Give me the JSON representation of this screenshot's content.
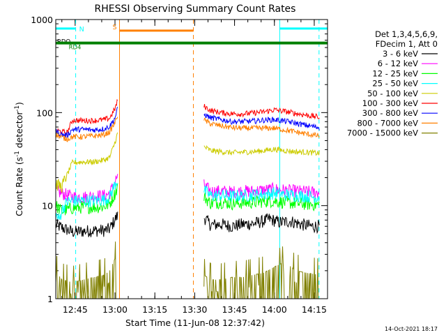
{
  "chart_data": {
    "type": "line",
    "title": "RHESSI Observing Summary Count Rates",
    "xlabel": "Start Time (11-Jun-08 12:37:42)",
    "ylabel_main": "Count Rate (s",
    "ylabel_sup": "-1",
    "ylabel_rest": " detector",
    "ylabel_end": ")",
    "y_scale": "log",
    "ylim": [
      1,
      1000
    ],
    "xlim_minutes": [
      757.7,
      860.0
    ],
    "x_ticks": [
      {
        "minutes": 765,
        "label": "12:45"
      },
      {
        "minutes": 780,
        "label": "13:00"
      },
      {
        "minutes": 795,
        "label": "13:15"
      },
      {
        "minutes": 810,
        "label": "13:30"
      },
      {
        "minutes": 825,
        "label": "13:45"
      },
      {
        "minutes": 840,
        "label": "14:00"
      },
      {
        "minutes": 855,
        "label": "14:15"
      }
    ],
    "y_ticks": [
      {
        "value": 1,
        "label": "1"
      },
      {
        "value": 10,
        "label": "10"
      },
      {
        "value": 100,
        "label": "100"
      },
      {
        "value": 1000,
        "label": "1000"
      }
    ],
    "legend_title": [
      "Det 1,3,4,5,6,9,",
      "FDecim 1, Att 0"
    ],
    "series": [
      {
        "name": "3 - 6 keV",
        "color": "#000000",
        "segments": [
          {
            "points": [
              [
                757.7,
                6.2
              ],
              [
                760,
                5.8
              ],
              [
                764,
                5.2
              ],
              [
                768,
                5.3
              ],
              [
                772,
                5.4
              ],
              [
                776,
                5.4
              ],
              [
                778,
                5.6
              ],
              [
                780.5,
                7.5
              ],
              [
                781,
                7.8
              ]
            ]
          },
          {
            "points": [
              [
                813.5,
                7.5
              ],
              [
                816,
                6.2
              ],
              [
                820,
                6.3
              ],
              [
                824,
                6.0
              ],
              [
                828,
                6.3
              ],
              [
                832,
                6.4
              ],
              [
                836,
                6.8
              ],
              [
                838,
                7.2
              ],
              [
                842,
                6.6
              ],
              [
                846,
                6.8
              ],
              [
                850,
                6.3
              ],
              [
                854,
                6.0
              ],
              [
                857,
                6.0
              ]
            ]
          }
        ]
      },
      {
        "name": "6 - 12 keV",
        "color": "#ff00ff",
        "segments": [
          {
            "points": [
              [
                757.7,
                14.5
              ],
              [
                760,
                13.5
              ],
              [
                764,
                12.5
              ],
              [
                768,
                12.3
              ],
              [
                772,
                12.7
              ],
              [
                776,
                12.8
              ],
              [
                778,
                13.5
              ],
              [
                780,
                18
              ],
              [
                781,
                21
              ]
            ]
          },
          {
            "points": [
              [
                813.5,
                16.5
              ],
              [
                816,
                14.2
              ],
              [
                820,
                14.3
              ],
              [
                824,
                14.0
              ],
              [
                828,
                14.3
              ],
              [
                832,
                14.3
              ],
              [
                836,
                14.7
              ],
              [
                840,
                15.0
              ],
              [
                844,
                14.6
              ],
              [
                848,
                14.3
              ],
              [
                852,
                14.1
              ],
              [
                857,
                13.8
              ]
            ]
          }
        ]
      },
      {
        "name": "12 - 25 keV",
        "color": "#00ff00",
        "segments": [
          {
            "points": [
              [
                757.7,
                10
              ],
              [
                760,
                8.7
              ],
              [
                764,
                9.4
              ],
              [
                768,
                9.6
              ],
              [
                772,
                9.6
              ],
              [
                776,
                9.8
              ],
              [
                778,
                10.5
              ],
              [
                780,
                13.5
              ],
              [
                781,
                16
              ]
            ]
          },
          {
            "points": [
              [
                813.5,
                12.5
              ],
              [
                816,
                10.6
              ],
              [
                820,
                10.9
              ],
              [
                824,
                10.5
              ],
              [
                828,
                10.7
              ],
              [
                832,
                10.8
              ],
              [
                836,
                11.1
              ],
              [
                840,
                11.2
              ],
              [
                844,
                10.8
              ],
              [
                848,
                10.6
              ],
              [
                852,
                10.4
              ],
              [
                857,
                10.2
              ]
            ]
          }
        ]
      },
      {
        "name": "25 - 50 keV",
        "color": "#00ffff",
        "segments": [
          {
            "points": [
              [
                757.7,
                8
              ],
              [
                759,
                7
              ],
              [
                760,
                9
              ],
              [
                762,
                11
              ],
              [
                764,
                11.3
              ],
              [
                768,
                11.2
              ],
              [
                772,
                11.3
              ],
              [
                776,
                11.6
              ],
              [
                778,
                12.5
              ],
              [
                780,
                17
              ],
              [
                781,
                19
              ]
            ]
          },
          {
            "points": [
              [
                813.5,
                14.5
              ],
              [
                816,
                12.8
              ],
              [
                820,
                12.9
              ],
              [
                824,
                12.6
              ],
              [
                828,
                12.8
              ],
              [
                832,
                12.9
              ],
              [
                836,
                13.3
              ],
              [
                840,
                13.6
              ],
              [
                844,
                13.1
              ],
              [
                848,
                12.9
              ],
              [
                852,
                12.6
              ],
              [
                857,
                12.3
              ]
            ]
          }
        ]
      },
      {
        "name": "50 - 100 keV",
        "color": "#cccc00",
        "segments": [
          {
            "points": [
              [
                757.7,
                17
              ],
              [
                760,
                16
              ],
              [
                764,
                29
              ],
              [
                768,
                29.5
              ],
              [
                772,
                29.5
              ],
              [
                776,
                31
              ],
              [
                778,
                33
              ],
              [
                780,
                48
              ],
              [
                781,
                60
              ]
            ]
          },
          {
            "points": [
              [
                813.5,
                43
              ],
              [
                816,
                39
              ],
              [
                820,
                38
              ],
              [
                824,
                37
              ],
              [
                828,
                37.5
              ],
              [
                832,
                38
              ],
              [
                836,
                39
              ],
              [
                840,
                40.5
              ],
              [
                844,
                39
              ],
              [
                848,
                38
              ],
              [
                852,
                37.5
              ],
              [
                857,
                36.5
              ]
            ]
          }
        ]
      },
      {
        "name": "100 - 300 keV",
        "color": "#ff0000",
        "segments": [
          {
            "points": [
              [
                757.7,
                65
              ],
              [
                760,
                62
              ],
              [
                762,
                61
              ],
              [
                764,
                83
              ],
              [
                768,
                82
              ],
              [
                772,
                82
              ],
              [
                776,
                84
              ],
              [
                778,
                87
              ],
              [
                780,
                110
              ],
              [
                781,
                135
              ]
            ]
          },
          {
            "points": [
              [
                813.5,
                117
              ],
              [
                816,
                105
              ],
              [
                820,
                100
              ],
              [
                824,
                97
              ],
              [
                828,
                97
              ],
              [
                832,
                99
              ],
              [
                836,
                102
              ],
              [
                840,
                107
              ],
              [
                844,
                103
              ],
              [
                848,
                98
              ],
              [
                852,
                94
              ],
              [
                857,
                89
              ]
            ]
          }
        ]
      },
      {
        "name": "300 - 800 keV",
        "color": "#0000ff",
        "segments": [
          {
            "points": [
              [
                757.7,
                63
              ],
              [
                760,
                58
              ],
              [
                762,
                57
              ],
              [
                764,
                66
              ],
              [
                768,
                66
              ],
              [
                772,
                65
              ],
              [
                776,
                67
              ],
              [
                778,
                71
              ],
              [
                780,
                88
              ],
              [
                781,
                110
              ]
            ]
          },
          {
            "points": [
              [
                813.5,
                96
              ],
              [
                816,
                88
              ],
              [
                820,
                84
              ],
              [
                824,
                80
              ],
              [
                828,
                80
              ],
              [
                832,
                81
              ],
              [
                836,
                83
              ],
              [
                840,
                84
              ],
              [
                844,
                81
              ],
              [
                848,
                77
              ],
              [
                852,
                73
              ],
              [
                857,
                69
              ]
            ]
          }
        ]
      },
      {
        "name": "800 - 7000 keV",
        "color": "#ff8000",
        "segments": [
          {
            "points": [
              [
                757.7,
                58
              ],
              [
                760,
                54
              ],
              [
                762,
                52
              ],
              [
                764,
                55
              ],
              [
                768,
                55
              ],
              [
                772,
                56
              ],
              [
                776,
                58
              ],
              [
                778,
                62
              ],
              [
                780,
                78
              ],
              [
                781,
                95
              ]
            ]
          },
          {
            "points": [
              [
                813.5,
                83
              ],
              [
                816,
                76
              ],
              [
                820,
                72
              ],
              [
                824,
                69
              ],
              [
                828,
                68
              ],
              [
                832,
                68
              ],
              [
                836,
                68
              ],
              [
                840,
                68
              ],
              [
                844,
                65
              ],
              [
                848,
                62
              ],
              [
                852,
                59
              ],
              [
                857,
                56
              ]
            ]
          }
        ]
      },
      {
        "name": "7000 - 15000 keV",
        "color": "#808000",
        "segments": [
          {
            "points": [
              [
                757.7,
                2.0
              ],
              [
                760,
                1.6
              ],
              [
                764,
                1.5
              ],
              [
                768,
                1.6
              ],
              [
                772,
                1.7
              ],
              [
                776,
                1.8
              ],
              [
                778,
                2.0
              ],
              [
                780,
                2.7
              ],
              [
                781,
                3.0
              ]
            ]
          },
          {
            "points": [
              [
                813.5,
                1.8
              ],
              [
                816,
                1.6
              ],
              [
                820,
                1.6
              ],
              [
                824,
                1.7
              ],
              [
                828,
                1.7
              ],
              [
                832,
                1.8
              ],
              [
                836,
                1.9
              ],
              [
                840,
                2.2
              ],
              [
                844,
                2.5
              ],
              [
                848,
                2.0
              ],
              [
                852,
                1.9
              ],
              [
                857,
                1.8
              ]
            ]
          }
        ]
      }
    ],
    "annotations": [
      {
        "label": "N",
        "color": "#00ffff",
        "type": "night",
        "bars": [
          [
            757.7,
            765.2
          ],
          [
            842.0,
            860.0
          ]
        ],
        "bar_y": 800
      },
      {
        "label": "S",
        "color": "#ff8000",
        "type": "saa",
        "bars": [
          [
            781.7,
            809.5
          ]
        ],
        "bar_y": 760
      },
      {
        "label": "RDO",
        "color": "#000000",
        "type": "text_only",
        "bar_y": 580
      },
      {
        "label": "RD4",
        "color": "#008000",
        "type": "rd4",
        "bars": [
          [
            757.7,
            860.0
          ]
        ],
        "bar_y": 560
      }
    ],
    "vlines": [
      {
        "minutes": 765.2,
        "color": "#00ffff",
        "dashed": true
      },
      {
        "minutes": 781.7,
        "color": "#ff8000",
        "dashed": false
      },
      {
        "minutes": 809.5,
        "color": "#ff8000",
        "dashed": true
      },
      {
        "minutes": 842.0,
        "color": "#00ffff",
        "dashed": false
      },
      {
        "minutes": 856.8,
        "color": "#00ffff",
        "dashed": true
      }
    ],
    "grid": false,
    "legend_position": "right"
  },
  "footer": {
    "timestamp": "14-Oct-2021 18:17"
  }
}
